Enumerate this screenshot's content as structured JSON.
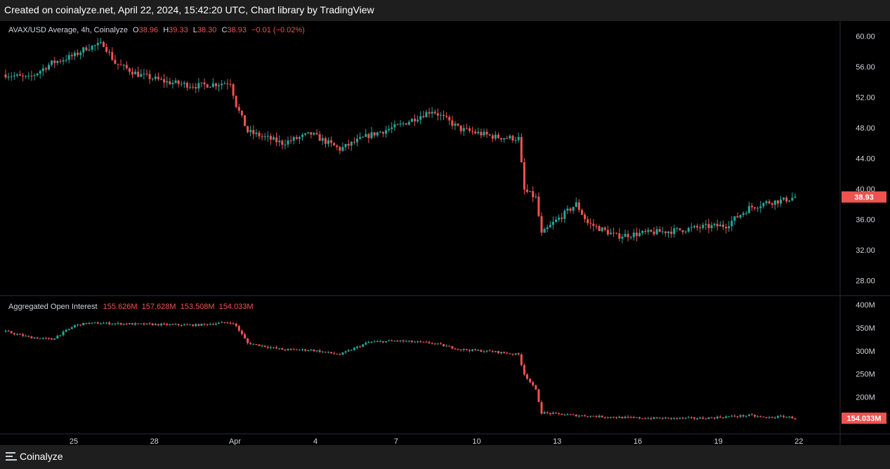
{
  "header": {
    "title": "Created on coinalyze.net, April 22, 2024, 15:42:20 UTC, Chart library by TradingView"
  },
  "footer": {
    "brand": "Coinalyze",
    "brand_icon": "menu-icon"
  },
  "colors": {
    "up": "#26a69a",
    "down": "#ef5350",
    "background": "#000000",
    "text": "#d1d4dc"
  },
  "main_legend": {
    "symbol": "AVAX/USD Average, 4h, Coinalyze",
    "o_label": "O",
    "o_value": "38.96",
    "h_label": "H",
    "h_value": "39.33",
    "l_label": "L",
    "l_value": "38.30",
    "c_label": "C",
    "c_value": "38.93",
    "change": "−0.01 (−0.02%)"
  },
  "oi_legend": {
    "name": "Aggregated Open Interest",
    "values": [
      "155.626M",
      "157.628M",
      "153.508M",
      "154.033M"
    ]
  },
  "chart_data": [
    {
      "type": "candlestick",
      "title": "AVAX/USD Average, 4h, Coinalyze",
      "ylim": [
        26,
        62
      ],
      "yticks": [
        "28.00",
        "32.00",
        "36.00",
        "40.00",
        "44.00",
        "48.00",
        "52.00",
        "56.00",
        "60.00"
      ],
      "last_price_label": "38.93",
      "last_price": 38.93,
      "x_dates": [
        "25",
        "28",
        "Apr",
        "4",
        "7",
        "10",
        "13",
        "16",
        "19",
        "22"
      ],
      "close_path": [
        [
          0,
          55.0
        ],
        [
          8,
          54.5
        ],
        [
          16,
          56.5
        ],
        [
          24,
          57.5
        ],
        [
          28,
          58.5
        ],
        [
          34,
          59.0
        ],
        [
          38,
          56.5
        ],
        [
          46,
          55.0
        ],
        [
          56,
          54.0
        ],
        [
          66,
          53.5
        ],
        [
          74,
          53.8
        ],
        [
          78,
          54.0
        ],
        [
          80,
          51.0
        ],
        [
          84,
          47.5
        ],
        [
          96,
          46.0
        ],
        [
          106,
          47.2
        ],
        [
          116,
          45.2
        ],
        [
          126,
          47.0
        ],
        [
          136,
          48.2
        ],
        [
          148,
          50.3
        ],
        [
          158,
          47.8
        ],
        [
          170,
          46.8
        ],
        [
          178,
          46.6
        ],
        [
          180,
          39.8
        ],
        [
          184,
          38.8
        ],
        [
          186,
          34.0
        ],
        [
          190,
          35.5
        ],
        [
          198,
          38.0
        ],
        [
          202,
          35.5
        ],
        [
          212,
          33.8
        ],
        [
          222,
          34.2
        ],
        [
          232,
          34.5
        ],
        [
          242,
          35.0
        ],
        [
          250,
          35.2
        ],
        [
          258,
          37.5
        ],
        [
          264,
          38.2
        ],
        [
          270,
          38.5
        ],
        [
          274,
          38.93
        ]
      ],
      "grid": false
    },
    {
      "type": "candlestick",
      "title": "Aggregated Open Interest",
      "ylim": [
        120,
        420
      ],
      "yticks": [
        "200M",
        "250M",
        "300M",
        "350M",
        "400M"
      ],
      "last_value_label": "154.033M",
      "last_value": 154.033,
      "close_path": [
        [
          0,
          342
        ],
        [
          8,
          330
        ],
        [
          16,
          325
        ],
        [
          24,
          355
        ],
        [
          28,
          360
        ],
        [
          34,
          360
        ],
        [
          46,
          358
        ],
        [
          56,
          357
        ],
        [
          66,
          356
        ],
        [
          74,
          360
        ],
        [
          78,
          362
        ],
        [
          80,
          354
        ],
        [
          84,
          317
        ],
        [
          96,
          303
        ],
        [
          106,
          302
        ],
        [
          116,
          292
        ],
        [
          126,
          319
        ],
        [
          136,
          322
        ],
        [
          148,
          317
        ],
        [
          158,
          303
        ],
        [
          170,
          298
        ],
        [
          178,
          292
        ],
        [
          180,
          250
        ],
        [
          184,
          215
        ],
        [
          186,
          166
        ],
        [
          198,
          160
        ],
        [
          212,
          156
        ],
        [
          222,
          154
        ],
        [
          232,
          154
        ],
        [
          242,
          154
        ],
        [
          250,
          157
        ],
        [
          258,
          160
        ],
        [
          264,
          155
        ],
        [
          270,
          158
        ],
        [
          274,
          154
        ]
      ],
      "grid": false
    }
  ]
}
